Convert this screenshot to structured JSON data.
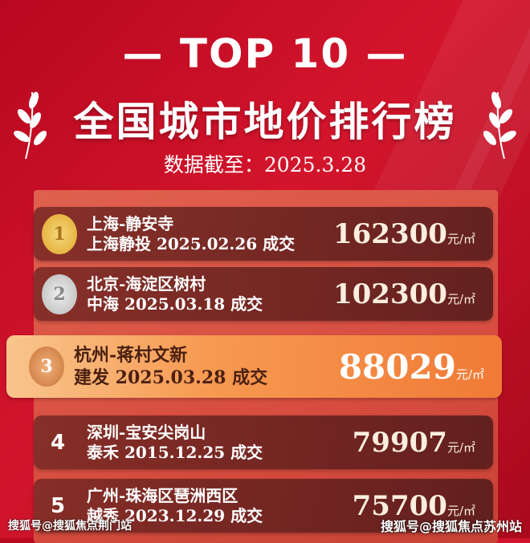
{
  "header": {
    "top_label": "— TOP 10 —",
    "title": "全国城市地价排行榜",
    "date_label": "数据截至：2025.3.28"
  },
  "unit": "元/㎡",
  "rows": [
    {
      "rank": "1",
      "badge": "gold-medal",
      "name": "上海-静安寺",
      "detail": "上海静投 2025.02.26 成交",
      "price": "162300"
    },
    {
      "rank": "2",
      "badge": "silver-medal",
      "name": "北京-海淀区树村",
      "detail": "中海 2025.03.18 成交",
      "price": "102300"
    },
    {
      "rank": "3",
      "badge": "bronze-medal",
      "name": "杭州-蒋村文新",
      "detail": "建发 2025.03.28 成交",
      "price": "88029"
    },
    {
      "rank": "4",
      "name": "深圳-宝安尖岗山",
      "detail": "泰禾 2015.12.25 成交",
      "price": "79907"
    },
    {
      "rank": "5",
      "name": "广州-珠海区琶洲西区",
      "detail": "越秀 2023.12.29 成交",
      "price": "75700"
    }
  ],
  "watermarks": {
    "left": "搜狐号@搜狐焦点荆门站",
    "right": "搜狐号@搜狐焦点苏州站"
  },
  "colors": {
    "gold": "#e8b53a",
    "silver": "#c9c9c9",
    "bronze": "#d98a4a",
    "highlight": "#f79a52"
  }
}
